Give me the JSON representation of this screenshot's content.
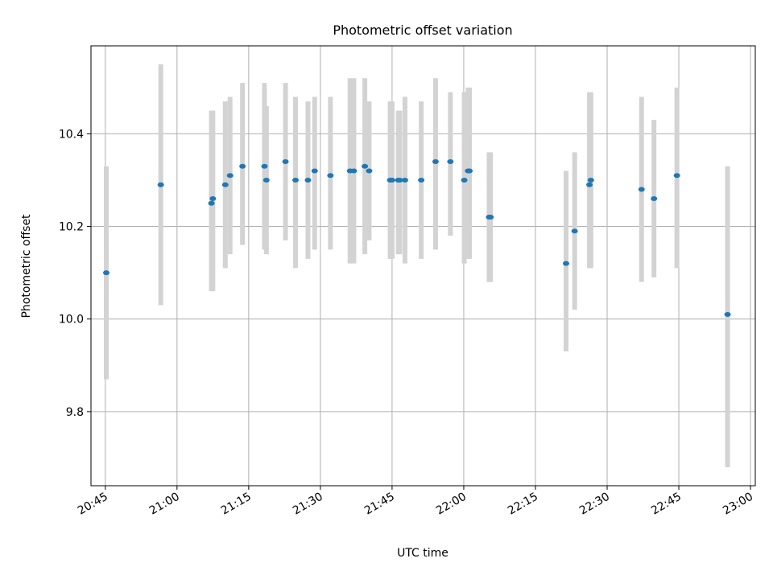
{
  "chart_data": {
    "type": "scatter",
    "title": "Photometric offset variation",
    "xlabel": "UTC time",
    "ylabel": "Photometric offset",
    "grid": true,
    "xlim": [
      "20:42",
      "23:01"
    ],
    "ylim": [
      9.64,
      10.59
    ],
    "x_ticks": [
      "20:45",
      "21:00",
      "21:15",
      "21:30",
      "21:45",
      "22:00",
      "22:15",
      "22:30",
      "22:45",
      "23:00"
    ],
    "y_ticks": [
      "9.8",
      "10.0",
      "10.2",
      "10.4"
    ],
    "colors": {
      "point": "#1f77b4",
      "errorbar": "#d3d3d3",
      "grid": "#b0b0b0"
    },
    "series": [
      {
        "x": [
          "20:45:12",
          "20:56:36",
          "21:07:12",
          "21:07:30",
          "21:10:06",
          "21:11:06",
          "21:13:42",
          "21:18:18",
          "21:18:42",
          "21:22:42",
          "21:24:48",
          "21:27:24",
          "21:28:48",
          "21:32:06",
          "21:36:12",
          "21:37:00",
          "21:39:18",
          "21:40:12",
          "21:44:36",
          "21:45:00",
          "21:46:18",
          "21:46:36",
          "21:47:42",
          "21:51:06",
          "21:54:06",
          "21:57:12",
          "22:00:06",
          "22:00:54",
          "22:01:12",
          "22:05:18",
          "22:05:36",
          "22:21:24",
          "22:23:12",
          "22:26:18",
          "22:26:36",
          "22:37:12",
          "22:39:48",
          "22:44:36",
          "22:55:12"
        ],
        "y": [
          10.1,
          10.29,
          10.25,
          10.26,
          10.29,
          10.31,
          10.33,
          10.33,
          10.3,
          10.34,
          10.3,
          10.3,
          10.32,
          10.31,
          10.32,
          10.32,
          10.33,
          10.32,
          10.3,
          10.3,
          10.3,
          10.3,
          10.3,
          10.3,
          10.34,
          10.34,
          10.3,
          10.32,
          10.32,
          10.22,
          10.22,
          10.12,
          10.19,
          10.29,
          10.3,
          10.28,
          10.26,
          10.31,
          10.01
        ],
        "err_low": [
          9.87,
          10.03,
          10.06,
          10.06,
          10.11,
          10.14,
          10.16,
          10.15,
          10.14,
          10.17,
          10.11,
          10.13,
          10.15,
          10.15,
          10.12,
          10.12,
          10.14,
          10.17,
          10.13,
          10.13,
          10.14,
          10.14,
          10.12,
          10.13,
          10.15,
          10.18,
          10.12,
          10.13,
          10.13,
          10.08,
          10.08,
          9.93,
          10.02,
          10.11,
          10.11,
          10.08,
          10.09,
          10.11,
          9.68
        ],
        "err_high": [
          10.33,
          10.55,
          10.45,
          10.45,
          10.47,
          10.48,
          10.51,
          10.51,
          10.46,
          10.51,
          10.48,
          10.47,
          10.48,
          10.48,
          10.52,
          10.52,
          10.52,
          10.47,
          10.47,
          10.47,
          10.45,
          10.45,
          10.48,
          10.47,
          10.52,
          10.49,
          10.49,
          10.5,
          10.5,
          10.36,
          10.36,
          10.32,
          10.36,
          10.49,
          10.49,
          10.48,
          10.43,
          10.5,
          10.33
        ]
      }
    ]
  }
}
